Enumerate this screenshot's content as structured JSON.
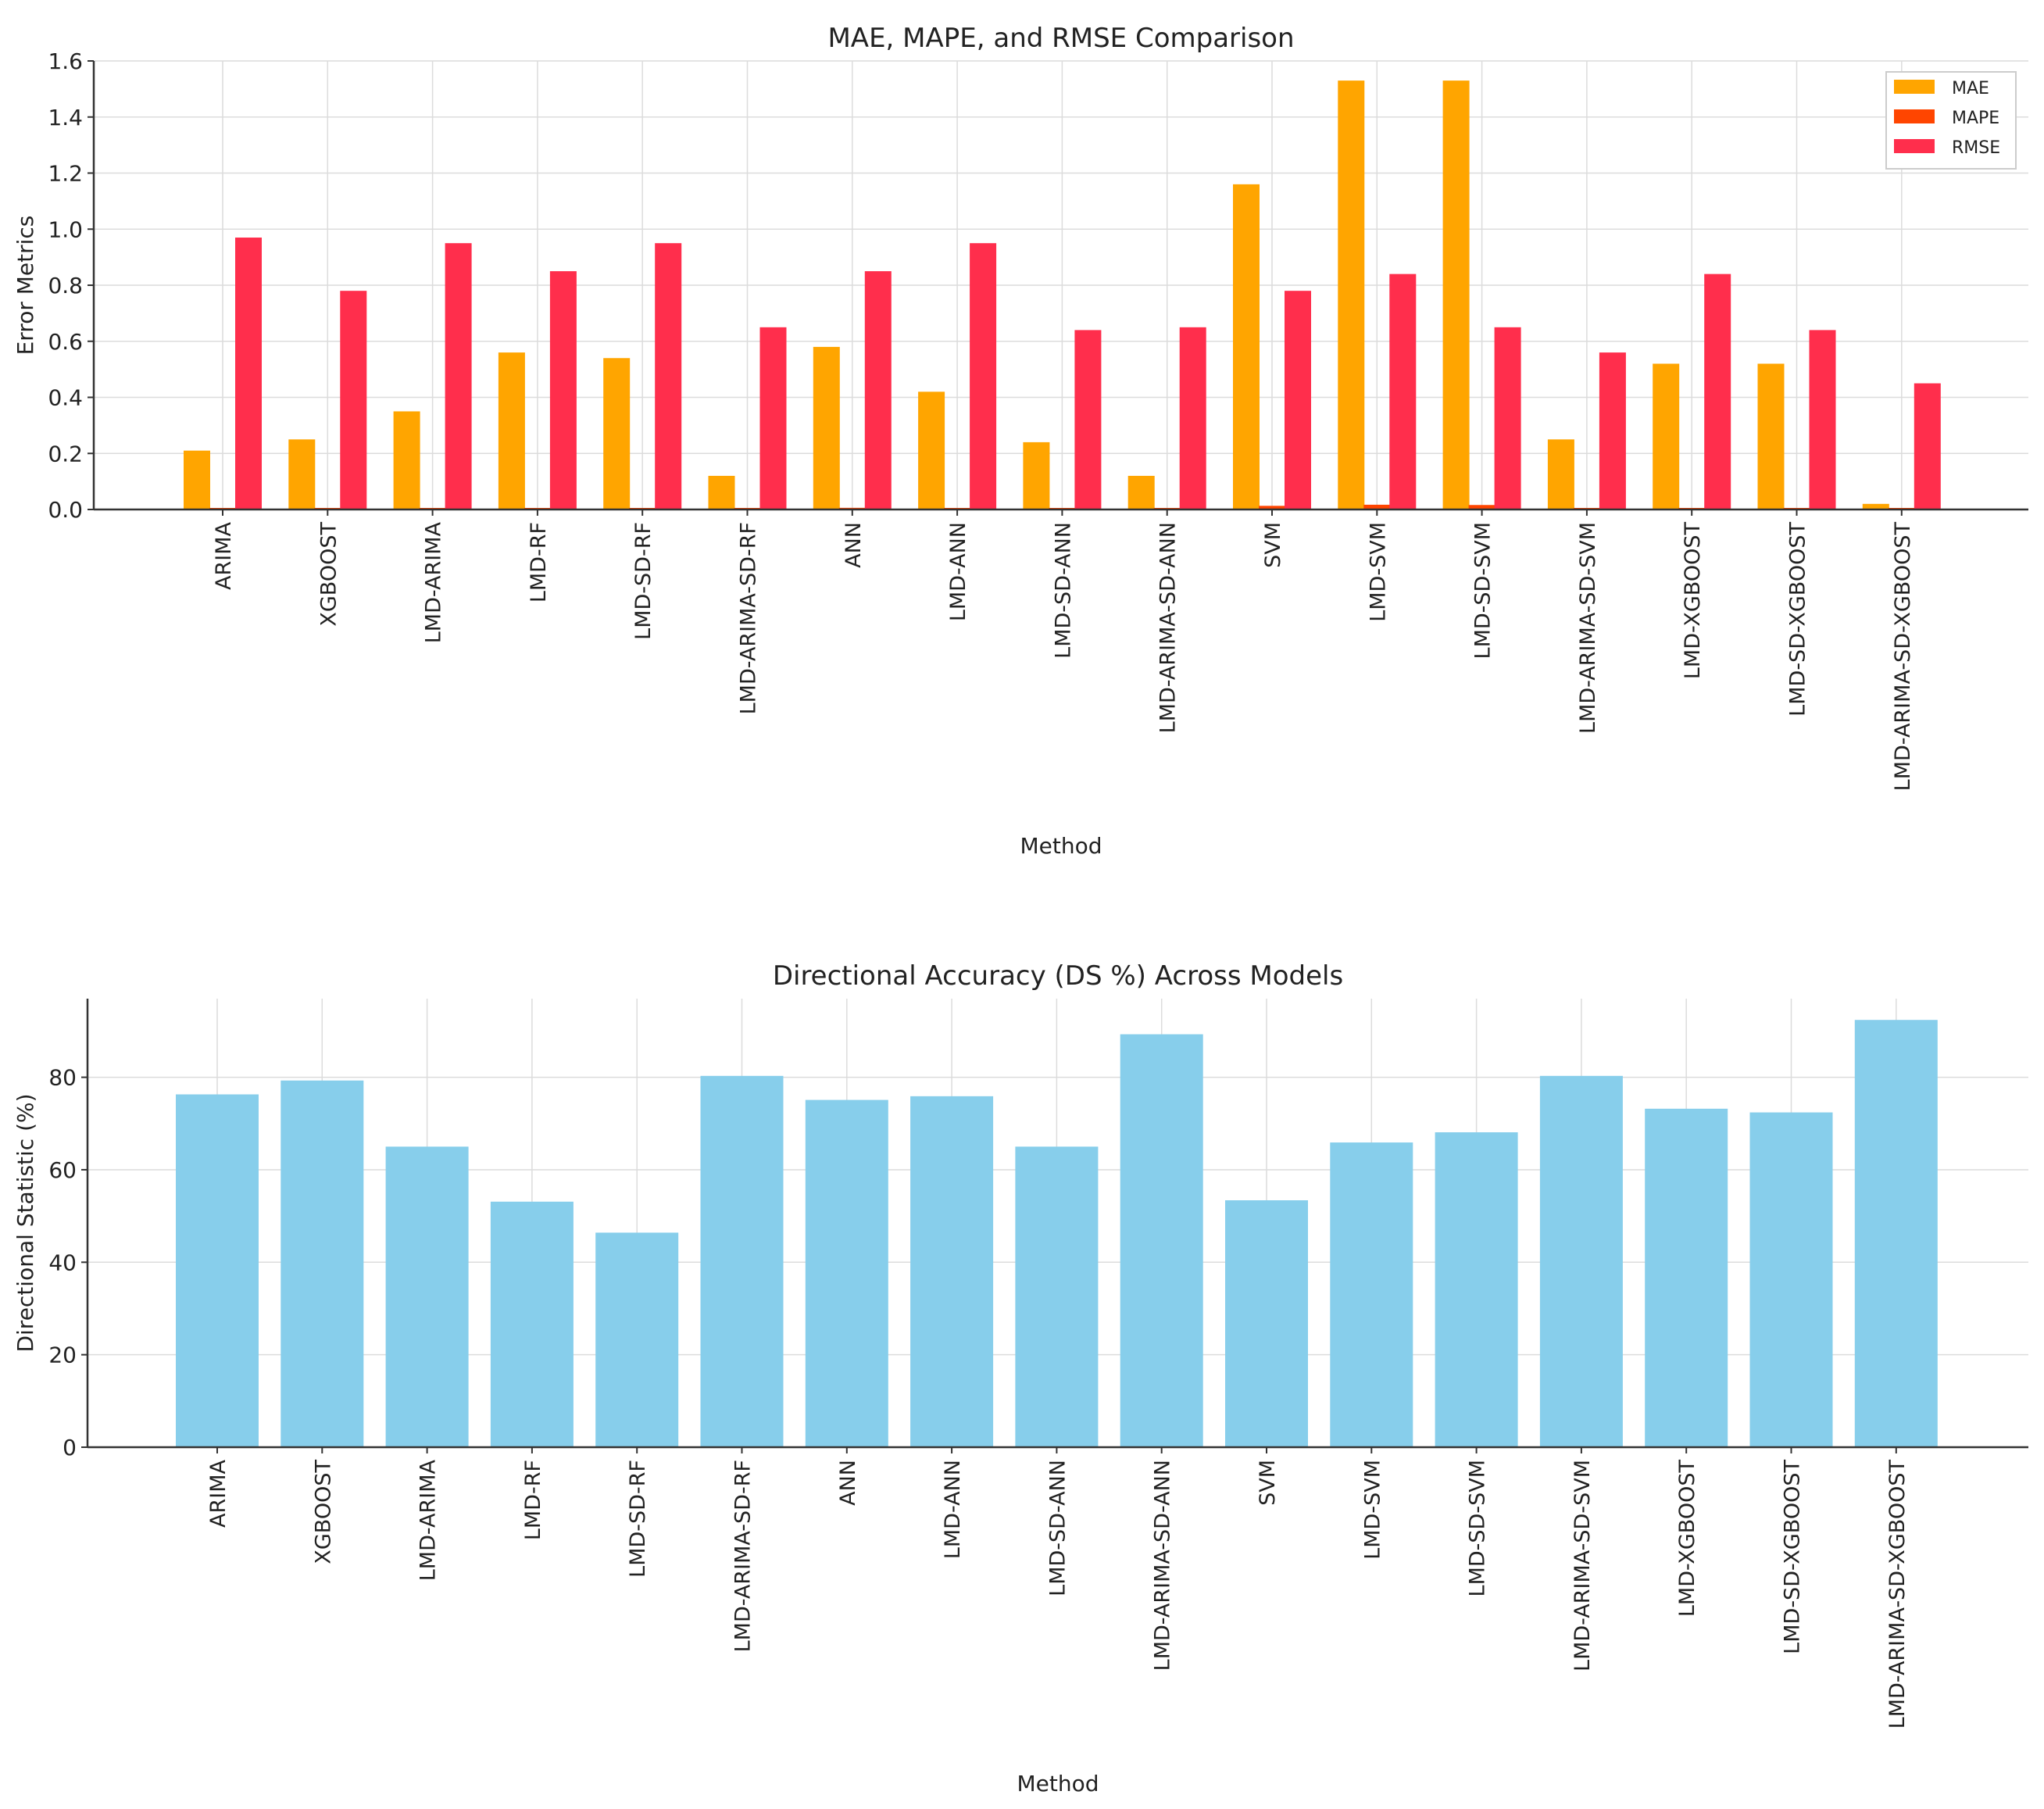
{
  "colors": {
    "mae": "#FFA500",
    "mape": "#FF4500",
    "rmse": "#FF2E4C",
    "ds": "#87CEEB"
  },
  "chart_data": [
    {
      "type": "bar",
      "title": "MAE, MAPE, and RMSE Comparison",
      "xlabel": "Method",
      "ylabel": "Error Metrics",
      "ylim": [
        0,
        1.6
      ],
      "yticks": [
        "0.0",
        "0.2",
        "0.4",
        "0.6",
        "0.8",
        "1.0",
        "1.2",
        "1.4",
        "1.6"
      ],
      "ytick_values": [
        0,
        0.2,
        0.4,
        0.6,
        0.8,
        1.0,
        1.2,
        1.4,
        1.6
      ],
      "grid": true,
      "legend_position": "top-right",
      "categories": [
        "ARIMA",
        "XGBOOST",
        "LMD-ARIMA",
        "LMD-RF",
        "LMD-SD-RF",
        "LMD-ARIMA-SD-RF",
        "ANN",
        "LMD-ANN",
        "LMD-SD-ANN",
        "LMD-ARIMA-SD-ANN",
        "SVM",
        "LMD-SVM",
        "LMD-SD-SVM",
        "LMD-ARIMA-SD-SVM",
        "LMD-XGBOOST",
        "LMD-SD-XGBOOST",
        "LMD-ARIMA-SD-XGBOOST"
      ],
      "series": [
        {
          "name": "MAE",
          "values": [
            0.21,
            0.25,
            0.35,
            0.56,
            0.54,
            0.12,
            0.58,
            0.42,
            0.24,
            0.12,
            1.16,
            1.53,
            1.53,
            0.25,
            0.52,
            0.52,
            0.02
          ]
        },
        {
          "name": "MAPE",
          "values": [
            0.003,
            0.003,
            0.004,
            0.005,
            0.005,
            0.002,
            0.006,
            0.005,
            0.003,
            0.002,
            0.013,
            0.017,
            0.016,
            0.003,
            0.005,
            0.005,
            0.001
          ]
        },
        {
          "name": "RMSE",
          "values": [
            0.97,
            0.78,
            0.95,
            0.85,
            0.95,
            0.65,
            0.85,
            0.95,
            0.64,
            0.65,
            0.78,
            0.84,
            0.65,
            0.56,
            0.84,
            0.64,
            0.45
          ]
        }
      ]
    },
    {
      "type": "bar",
      "title": "Directional Accuracy (DS %) Across Models",
      "xlabel": "Method",
      "ylabel": "Directional Statistic (%)",
      "ylim": [
        0,
        97
      ],
      "yticks": [
        "0",
        "20",
        "40",
        "60",
        "80"
      ],
      "ytick_values": [
        0,
        20,
        40,
        60,
        80
      ],
      "grid": true,
      "categories": [
        "ARIMA",
        "XGBOOST",
        "LMD-ARIMA",
        "LMD-RF",
        "LMD-SD-RF",
        "LMD-ARIMA-SD-RF",
        "ANN",
        "LMD-ANN",
        "LMD-SD-ANN",
        "LMD-ARIMA-SD-ANN",
        "SVM",
        "LMD-SVM",
        "LMD-SD-SVM",
        "LMD-ARIMA-SD-SVM",
        "LMD-XGBOOST",
        "LMD-SD-XGBOOST",
        "LMD-ARIMA-SD-XGBOOST"
      ],
      "series": [
        {
          "name": "DS",
          "values": [
            76.3,
            79.3,
            65.0,
            53.1,
            46.4,
            80.3,
            75.1,
            75.9,
            65.0,
            89.3,
            53.4,
            65.9,
            68.1,
            80.3,
            73.2,
            72.4,
            92.4
          ]
        }
      ]
    }
  ]
}
